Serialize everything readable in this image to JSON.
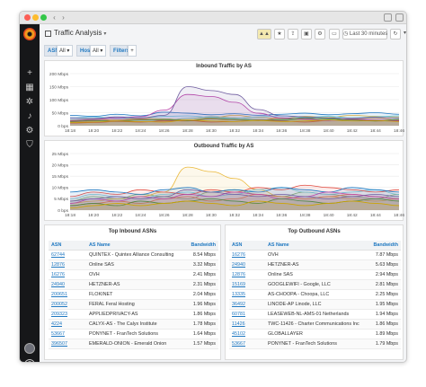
{
  "window": {
    "back_glyph": "‹",
    "forward_glyph": "›"
  },
  "sidebar": {
    "items": [
      {
        "name": "grafana-logo-icon"
      },
      {
        "name": "plus-icon",
        "glyph": "+"
      },
      {
        "name": "dashboards-icon",
        "glyph": "▦"
      },
      {
        "name": "explore-icon",
        "glyph": "✲"
      },
      {
        "name": "alerting-icon",
        "glyph": "♪"
      },
      {
        "name": "configuration-icon",
        "glyph": "⚙"
      },
      {
        "name": "shield-icon",
        "glyph": "⛉"
      }
    ],
    "help_glyph": "?"
  },
  "header": {
    "title": "Traffic Analysis",
    "title_caret": "▾",
    "time_range": "Last 30 minutes",
    "buttons": {
      "add": "▲▲",
      "star": "★",
      "share": "⇪",
      "save": "▣",
      "settings": "⚙",
      "tv": "▭",
      "time_prefix": "◷",
      "refresh": "↻",
      "zoom": "▾"
    }
  },
  "variables": {
    "asn_label": "ASN",
    "asn_value": "All ▾",
    "host_label": "Host",
    "host_value": "All ▾",
    "filters_label": "Filters",
    "add_glyph": "+"
  },
  "chart_data": [
    {
      "type": "area",
      "title": "Inbound Traffic by AS",
      "y_ticks": [
        "200 Mbps",
        "150 Mbps",
        "100 Mbps",
        "50 Mbps",
        "0 bps"
      ],
      "ylim": [
        0,
        200
      ],
      "x": [
        "18:18",
        "18:20",
        "18:22",
        "18:24",
        "18:26",
        "18:28",
        "18:30",
        "18:32",
        "18:34",
        "18:36",
        "18:38",
        "18:40",
        "18:42",
        "18:44",
        "18:46"
      ],
      "grid": true,
      "series": [
        {
          "color": "#7eb26d",
          "values": [
            22,
            26,
            30,
            24,
            20,
            28,
            35,
            30,
            24,
            20,
            26,
            30,
            22,
            18,
            24
          ]
        },
        {
          "color": "#eab839",
          "values": [
            18,
            24,
            22,
            30,
            26,
            22,
            30,
            40,
            32,
            28,
            36,
            32,
            40,
            36,
            34
          ]
        },
        {
          "color": "#6ed0e0",
          "values": [
            30,
            34,
            28,
            30,
            36,
            38,
            32,
            28,
            34,
            38,
            32,
            36,
            30,
            34,
            38
          ]
        },
        {
          "color": "#ef843c",
          "values": [
            14,
            18,
            22,
            26,
            20,
            18,
            26,
            22,
            20,
            30,
            24,
            20,
            26,
            30,
            22
          ]
        },
        {
          "color": "#e24d42",
          "values": [
            10,
            12,
            16,
            14,
            18,
            20,
            14,
            16,
            22,
            18,
            14,
            20,
            24,
            18,
            20
          ]
        },
        {
          "color": "#1f78c1",
          "values": [
            40,
            36,
            44,
            38,
            52,
            48,
            42,
            46,
            40,
            44,
            48,
            42,
            46,
            50,
            44
          ]
        },
        {
          "color": "#ba43a9",
          "values": [
            20,
            24,
            30,
            35,
            60,
            120,
            112,
            90,
            48,
            30,
            26,
            20,
            24,
            22,
            18
          ]
        },
        {
          "color": "#705da0",
          "values": [
            30,
            28,
            34,
            30,
            40,
            150,
            135,
            120,
            62,
            38,
            34,
            30,
            28,
            32,
            30
          ]
        },
        {
          "color": "#508642",
          "values": [
            16,
            20,
            18,
            22,
            24,
            20,
            28,
            24,
            20,
            24,
            30,
            26,
            22,
            18,
            24
          ]
        },
        {
          "color": "#cca300",
          "values": [
            12,
            14,
            18,
            16,
            14,
            22,
            18,
            16,
            20,
            16,
            18,
            22,
            18,
            20,
            16
          ]
        }
      ]
    },
    {
      "type": "area",
      "title": "Outbound Traffic by AS",
      "y_ticks": [
        "25 Mbps",
        "20 Mbps",
        "15 Mbps",
        "10 Mbps",
        "5 Mbps",
        "0 bps"
      ],
      "ylim": [
        0,
        25
      ],
      "x": [
        "18:18",
        "18:20",
        "18:22",
        "18:24",
        "18:26",
        "18:28",
        "18:30",
        "18:32",
        "18:34",
        "18:36",
        "18:38",
        "18:40",
        "18:42",
        "18:44",
        "18:46"
      ],
      "grid": true,
      "series": [
        {
          "color": "#7eb26d",
          "values": [
            4,
            6,
            5,
            7,
            6,
            5,
            8,
            9,
            7,
            6,
            8,
            7,
            6,
            5,
            7
          ]
        },
        {
          "color": "#eab839",
          "values": [
            3,
            4,
            5,
            6,
            8,
            19,
            17,
            14,
            9,
            6,
            5,
            6,
            5,
            4,
            5
          ]
        },
        {
          "color": "#6ed0e0",
          "values": [
            5,
            7,
            6,
            5,
            7,
            8,
            6,
            7,
            9,
            10,
            8,
            7,
            8,
            9,
            7
          ]
        },
        {
          "color": "#ef843c",
          "values": [
            2,
            3,
            4,
            3,
            5,
            6,
            4,
            5,
            7,
            6,
            5,
            6,
            7,
            6,
            5
          ]
        },
        {
          "color": "#e24d42",
          "values": [
            6,
            8,
            7,
            9,
            8,
            7,
            9,
            8,
            10,
            9,
            11,
            10,
            9,
            8,
            9
          ]
        },
        {
          "color": "#1f78c1",
          "values": [
            8,
            9,
            8,
            7,
            9,
            10,
            8,
            9,
            8,
            10,
            9,
            8,
            10,
            9,
            8
          ]
        },
        {
          "color": "#ba43a9",
          "values": [
            3,
            5,
            4,
            6,
            5,
            7,
            6,
            8,
            7,
            5,
            6,
            8,
            7,
            6,
            5
          ]
        },
        {
          "color": "#705da0",
          "values": [
            4,
            5,
            6,
            5,
            6,
            9,
            8,
            7,
            6,
            7,
            6,
            5,
            6,
            7,
            6
          ]
        },
        {
          "color": "#508642",
          "values": [
            2,
            3,
            2,
            4,
            3,
            4,
            5,
            4,
            3,
            5,
            4,
            3,
            4,
            5,
            4
          ]
        },
        {
          "color": "#cca300",
          "values": [
            1,
            2,
            3,
            2,
            3,
            4,
            3,
            2,
            4,
            3,
            2,
            3,
            4,
            3,
            2
          ]
        }
      ]
    }
  ],
  "top_inbound": {
    "title": "Top Inbound ASNs",
    "columns": [
      "ASN",
      "AS Name",
      "Bandwidth"
    ],
    "rows": [
      {
        "asn": "62744",
        "name": "QUINTEX - Quintex Alliance Consulting",
        "bw": "8.54 Mbps"
      },
      {
        "asn": "12876",
        "name": "Online SAS",
        "bw": "3.32 Mbps"
      },
      {
        "asn": "16276",
        "name": "OVH",
        "bw": "2.41 Mbps"
      },
      {
        "asn": "24940",
        "name": "HETZNER-AS",
        "bw": "2.31 Mbps"
      },
      {
        "asn": "200651",
        "name": "FLOKINET",
        "bw": "2.04 Mbps"
      },
      {
        "asn": "200052",
        "name": "FERAL Feral Hosting",
        "bw": "1.96 Mbps"
      },
      {
        "asn": "209323",
        "name": "APPLIEDPRIVACY-AS",
        "bw": "1.86 Mbps"
      },
      {
        "asn": "4224",
        "name": "CALYX-AS - The Calyx Institute",
        "bw": "1.78 Mbps"
      },
      {
        "asn": "53667",
        "name": "PONYNET - FranTech Solutions",
        "bw": "1.64 Mbps"
      },
      {
        "asn": "396507",
        "name": "EMERALD-ONION - Emerald Onion",
        "bw": "1.57 Mbps"
      }
    ]
  },
  "top_outbound": {
    "title": "Top Outbound ASNs",
    "columns": [
      "ASN",
      "AS Name",
      "Bandwidth"
    ],
    "rows": [
      {
        "asn": "16276",
        "name": "OVH",
        "bw": "7.87 Mbps"
      },
      {
        "asn": "24940",
        "name": "HETZNER-AS",
        "bw": "5.63 Mbps"
      },
      {
        "asn": "12876",
        "name": "Online SAS",
        "bw": "2.94 Mbps"
      },
      {
        "asn": "15169",
        "name": "GOOGLEWIFI - Google, LLC",
        "bw": "2.81 Mbps"
      },
      {
        "asn": "13335",
        "name": "AS-CHOOPA - Choopa, LLC",
        "bw": "2.25 Mbps"
      },
      {
        "asn": "36492",
        "name": "LINODE-AP Linode, LLC",
        "bw": "1.95 Mbps"
      },
      {
        "asn": "60781",
        "name": "LEASEWEB-NL-AMS-01 Netherlands",
        "bw": "1.94 Mbps"
      },
      {
        "asn": "11426",
        "name": "TWC-11426 - Charter Communications Inc",
        "bw": "1.86 Mbps"
      },
      {
        "asn": "45102",
        "name": "GLOBALLAYER",
        "bw": "1.89 Mbps"
      },
      {
        "asn": "53667",
        "name": "PONYNET - FranTech Solutions",
        "bw": "1.79 Mbps"
      }
    ]
  }
}
